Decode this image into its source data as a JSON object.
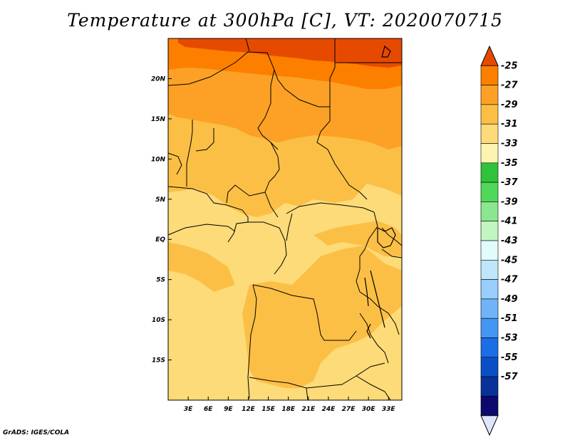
{
  "title": "Temperature at 300hPa [C], VT: 2020070715",
  "footer": "GrADS: IGES/COLA",
  "map": {
    "lon_ticks": [
      "3E",
      "6E",
      "9E",
      "12E",
      "15E",
      "18E",
      "21E",
      "24E",
      "27E",
      "30E",
      "33E"
    ],
    "lat_ticks": [
      "20N",
      "15N",
      "10N",
      "5N",
      "EQ",
      "5S",
      "10S",
      "15S"
    ],
    "lon_range": [
      0,
      35
    ],
    "lat_range": [
      -20,
      25
    ]
  },
  "colorbar": {
    "labels": [
      "-25",
      "-27",
      "-29",
      "-31",
      "-33",
      "-35",
      "-37",
      "-39",
      "-41",
      "-43",
      "-45",
      "-47",
      "-49",
      "-51",
      "-53",
      "-55",
      "-57"
    ],
    "colors": [
      "#e64a00",
      "#fc7f00",
      "#fca126",
      "#fcbf45",
      "#fcdb78",
      "#fcf4b0",
      "#30c23a",
      "#50d85a",
      "#8ae68f",
      "#c3f5c3",
      "#e2fcfc",
      "#c0e6fc",
      "#98cdfc",
      "#6fb4f9",
      "#4496f5",
      "#1c6ee6",
      "#0b4fc6",
      "#083298",
      "#0c0a6e",
      "#e0e4fc"
    ]
  }
}
